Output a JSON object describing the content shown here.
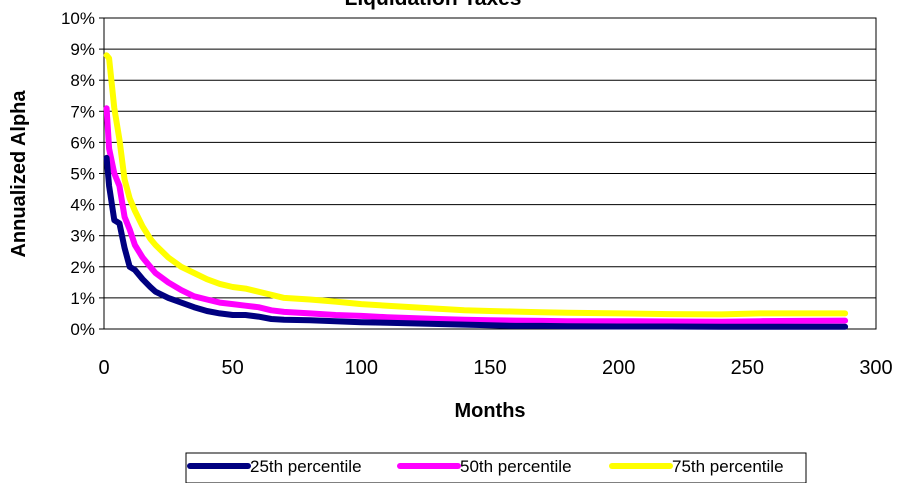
{
  "chart_data": {
    "type": "line",
    "title": "Liquidation Taxes",
    "xlabel": "Months",
    "ylabel": "Annualized Alpha",
    "xlim": [
      0,
      300
    ],
    "ylim": [
      0,
      10
    ],
    "x_ticks": [
      "0",
      "50",
      "100",
      "150",
      "200",
      "250",
      "300"
    ],
    "y_ticks": [
      "0%",
      "1%",
      "2%",
      "3%",
      "4%",
      "5%",
      "6%",
      "7%",
      "8%",
      "9%",
      "10%"
    ],
    "grid": "horizontal",
    "legend_position": "bottom",
    "series": [
      {
        "name": "25th percentile",
        "color": "#000080",
        "points": [
          [
            1,
            5.5
          ],
          [
            2,
            4.6
          ],
          [
            4,
            3.5
          ],
          [
            6,
            3.4
          ],
          [
            8,
            2.6
          ],
          [
            10,
            2.0
          ],
          [
            12,
            1.9
          ],
          [
            15,
            1.6
          ],
          [
            18,
            1.35
          ],
          [
            20,
            1.2
          ],
          [
            25,
            1.0
          ],
          [
            30,
            0.85
          ],
          [
            35,
            0.7
          ],
          [
            40,
            0.58
          ],
          [
            45,
            0.5
          ],
          [
            50,
            0.45
          ],
          [
            55,
            0.45
          ],
          [
            60,
            0.4
          ],
          [
            65,
            0.32
          ],
          [
            70,
            0.3
          ],
          [
            80,
            0.28
          ],
          [
            90,
            0.25
          ],
          [
            100,
            0.22
          ],
          [
            110,
            0.2
          ],
          [
            120,
            0.18
          ],
          [
            130,
            0.16
          ],
          [
            140,
            0.14
          ],
          [
            150,
            0.12
          ],
          [
            160,
            0.1
          ],
          [
            170,
            0.1
          ],
          [
            180,
            0.09
          ],
          [
            200,
            0.08
          ],
          [
            220,
            0.08
          ],
          [
            240,
            0.07
          ],
          [
            260,
            0.07
          ],
          [
            275,
            0.07
          ],
          [
            288,
            0.07
          ]
        ]
      },
      {
        "name": "50th percentile",
        "color": "#ff00ff",
        "points": [
          [
            1,
            7.1
          ],
          [
            2,
            5.8
          ],
          [
            4,
            5.0
          ],
          [
            6,
            4.6
          ],
          [
            8,
            3.6
          ],
          [
            10,
            3.2
          ],
          [
            12,
            2.7
          ],
          [
            15,
            2.3
          ],
          [
            18,
            2.0
          ],
          [
            20,
            1.8
          ],
          [
            25,
            1.5
          ],
          [
            30,
            1.25
          ],
          [
            35,
            1.05
          ],
          [
            40,
            0.95
          ],
          [
            45,
            0.85
          ],
          [
            50,
            0.8
          ],
          [
            55,
            0.75
          ],
          [
            60,
            0.7
          ],
          [
            65,
            0.6
          ],
          [
            70,
            0.55
          ],
          [
            80,
            0.5
          ],
          [
            90,
            0.45
          ],
          [
            100,
            0.42
          ],
          [
            110,
            0.38
          ],
          [
            120,
            0.35
          ],
          [
            130,
            0.32
          ],
          [
            140,
            0.3
          ],
          [
            150,
            0.28
          ],
          [
            160,
            0.27
          ],
          [
            170,
            0.26
          ],
          [
            180,
            0.25
          ],
          [
            200,
            0.25
          ],
          [
            220,
            0.24
          ],
          [
            240,
            0.23
          ],
          [
            255,
            0.25
          ],
          [
            270,
            0.26
          ],
          [
            288,
            0.27
          ]
        ]
      },
      {
        "name": "75th percentile",
        "color": "#ffff00",
        "points": [
          [
            1,
            8.8
          ],
          [
            2,
            8.7
          ],
          [
            4,
            7.1
          ],
          [
            6,
            6.1
          ],
          [
            8,
            4.8
          ],
          [
            10,
            4.2
          ],
          [
            12,
            3.8
          ],
          [
            15,
            3.3
          ],
          [
            18,
            2.9
          ],
          [
            20,
            2.7
          ],
          [
            25,
            2.3
          ],
          [
            30,
            2.0
          ],
          [
            35,
            1.8
          ],
          [
            40,
            1.6
          ],
          [
            45,
            1.45
          ],
          [
            50,
            1.35
          ],
          [
            55,
            1.3
          ],
          [
            60,
            1.2
          ],
          [
            65,
            1.1
          ],
          [
            70,
            1.0
          ],
          [
            80,
            0.95
          ],
          [
            90,
            0.88
          ],
          [
            100,
            0.8
          ],
          [
            110,
            0.75
          ],
          [
            120,
            0.7
          ],
          [
            130,
            0.65
          ],
          [
            140,
            0.6
          ],
          [
            150,
            0.58
          ],
          [
            160,
            0.56
          ],
          [
            170,
            0.54
          ],
          [
            180,
            0.52
          ],
          [
            200,
            0.5
          ],
          [
            220,
            0.48
          ],
          [
            240,
            0.47
          ],
          [
            255,
            0.5
          ],
          [
            270,
            0.5
          ],
          [
            288,
            0.5
          ]
        ]
      }
    ]
  }
}
